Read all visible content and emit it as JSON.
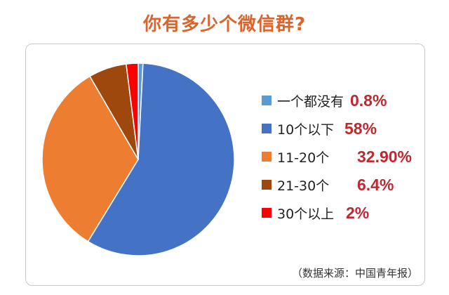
{
  "title": "你有多少个微信群?",
  "source": "（数据来源：中国青年报）",
  "chart_data": {
    "type": "pie",
    "title": "你有多少个微信群?",
    "slices": [
      {
        "label": "一个都没有",
        "value": 0.8,
        "value_text": "0.8%",
        "color": "#5b9bd5"
      },
      {
        "label": "10个以下",
        "value": 58,
        "value_text": "58%",
        "color": "#4472c4"
      },
      {
        "label": "11-20个",
        "value": 32.9,
        "value_text": "32.90%",
        "color": "#ed7d31"
      },
      {
        "label": "21-30个",
        "value": 6.4,
        "value_text": "6.4%",
        "color": "#9e480e"
      },
      {
        "label": "30个以上",
        "value": 2,
        "value_text": "2%",
        "color": "#ff0000"
      }
    ],
    "legend_position": "right"
  }
}
